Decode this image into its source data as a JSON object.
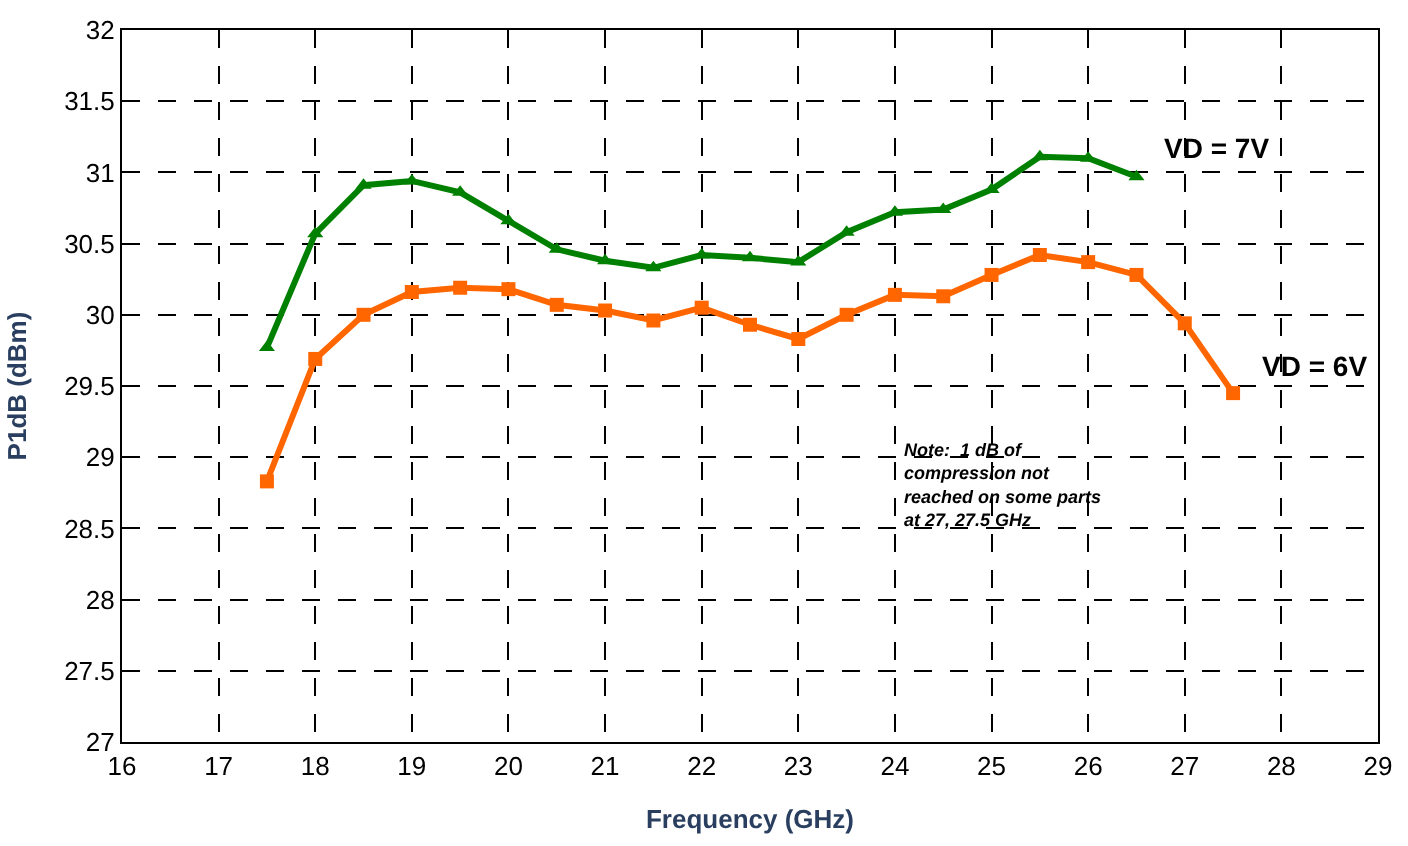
{
  "chart_data": {
    "type": "line",
    "xlabel": "Frequency (GHz)",
    "ylabel": "P1dB (dBm)",
    "x": [
      17.5,
      18,
      18.5,
      19,
      19.5,
      20,
      20.5,
      21,
      21.5,
      22,
      22.5,
      23,
      23.5,
      24,
      24.5,
      25,
      25.5,
      26,
      26.5,
      27,
      27.5
    ],
    "series": [
      {
        "name": "VD = 7V",
        "color": "#008000",
        "marker": "triangle",
        "values": [
          29.77,
          30.57,
          30.91,
          30.94,
          30.86,
          30.66,
          30.46,
          30.38,
          30.33,
          30.42,
          30.4,
          30.37,
          30.58,
          30.72,
          30.74,
          30.88,
          31.11,
          31.1,
          30.97,
          null,
          null
        ]
      },
      {
        "name": "VD = 6V",
        "color": "#ff6600",
        "marker": "square",
        "values": [
          28.83,
          29.69,
          30.0,
          30.16,
          30.19,
          30.18,
          30.07,
          30.03,
          29.96,
          30.05,
          29.93,
          29.83,
          30.0,
          30.14,
          30.13,
          30.28,
          30.42,
          30.37,
          30.28,
          29.94,
          29.45
        ]
      }
    ],
    "xlim": [
      16,
      29
    ],
    "xticks": [
      16,
      17,
      18,
      19,
      20,
      21,
      22,
      23,
      24,
      25,
      26,
      27,
      28,
      29
    ],
    "ylim": [
      27,
      32
    ],
    "yticks": [
      27,
      27.5,
      28,
      28.5,
      29,
      29.5,
      30,
      30.5,
      31,
      31.5,
      32
    ],
    "grid": true,
    "legend": false,
    "line_style": "solid",
    "annotations": [
      "Note:  1 dB of\ncompression not\nreached on some parts\nat 27, 27.5 GHz"
    ]
  }
}
